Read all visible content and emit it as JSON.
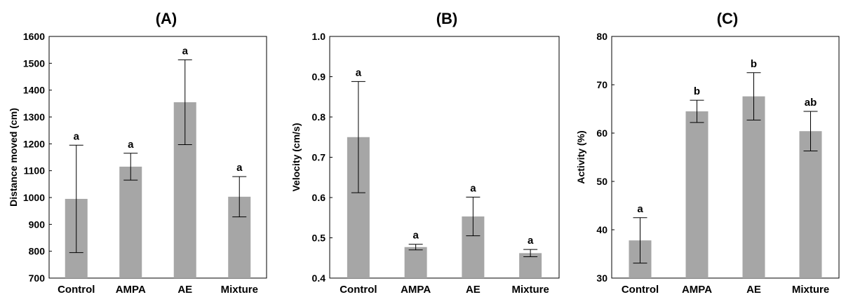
{
  "chart_data": [
    {
      "type": "bar",
      "title": "(A)",
      "xlabel": "",
      "ylabel": "Distance moved (cm)",
      "ylim": [
        700,
        1600
      ],
      "yticks": [
        700,
        800,
        900,
        1000,
        1100,
        1200,
        1300,
        1400,
        1500,
        1600
      ],
      "categories": [
        "Control",
        "AMPA",
        "AE",
        "Mixture"
      ],
      "values": [
        995,
        1115,
        1355,
        1003
      ],
      "errors": [
        200,
        50,
        158,
        75
      ],
      "labels": [
        "a",
        "a",
        "a",
        "a"
      ],
      "bar_color": "#a6a6a6"
    },
    {
      "type": "bar",
      "title": "(B)",
      "xlabel": "",
      "ylabel": "Velocity (cm/s)",
      "ylim": [
        0.4,
        1.0
      ],
      "yticks": [
        "0.4",
        "0.5",
        "0.6",
        "0.7",
        "0.8",
        "0.9",
        "1.0"
      ],
      "categories": [
        "Control",
        "AMPA",
        "AE",
        "Mixture"
      ],
      "values": [
        0.75,
        0.477,
        0.553,
        0.462
      ],
      "errors": [
        0.138,
        0.007,
        0.048,
        0.009
      ],
      "labels": [
        "a",
        "a",
        "a",
        "a"
      ],
      "bar_color": "#a6a6a6"
    },
    {
      "type": "bar",
      "title": "(C)",
      "xlabel": "",
      "ylabel": "Activity (%)",
      "ylim": [
        30,
        80
      ],
      "yticks": [
        30,
        40,
        50,
        60,
        70,
        80
      ],
      "categories": [
        "Control",
        "AMPA",
        "AE",
        "Mixture"
      ],
      "values": [
        37.8,
        64.5,
        67.6,
        60.4
      ],
      "errors": [
        4.7,
        2.3,
        4.9,
        4.1
      ],
      "labels": [
        "a",
        "b",
        "b",
        "ab"
      ],
      "bar_color": "#a6a6a6"
    }
  ]
}
